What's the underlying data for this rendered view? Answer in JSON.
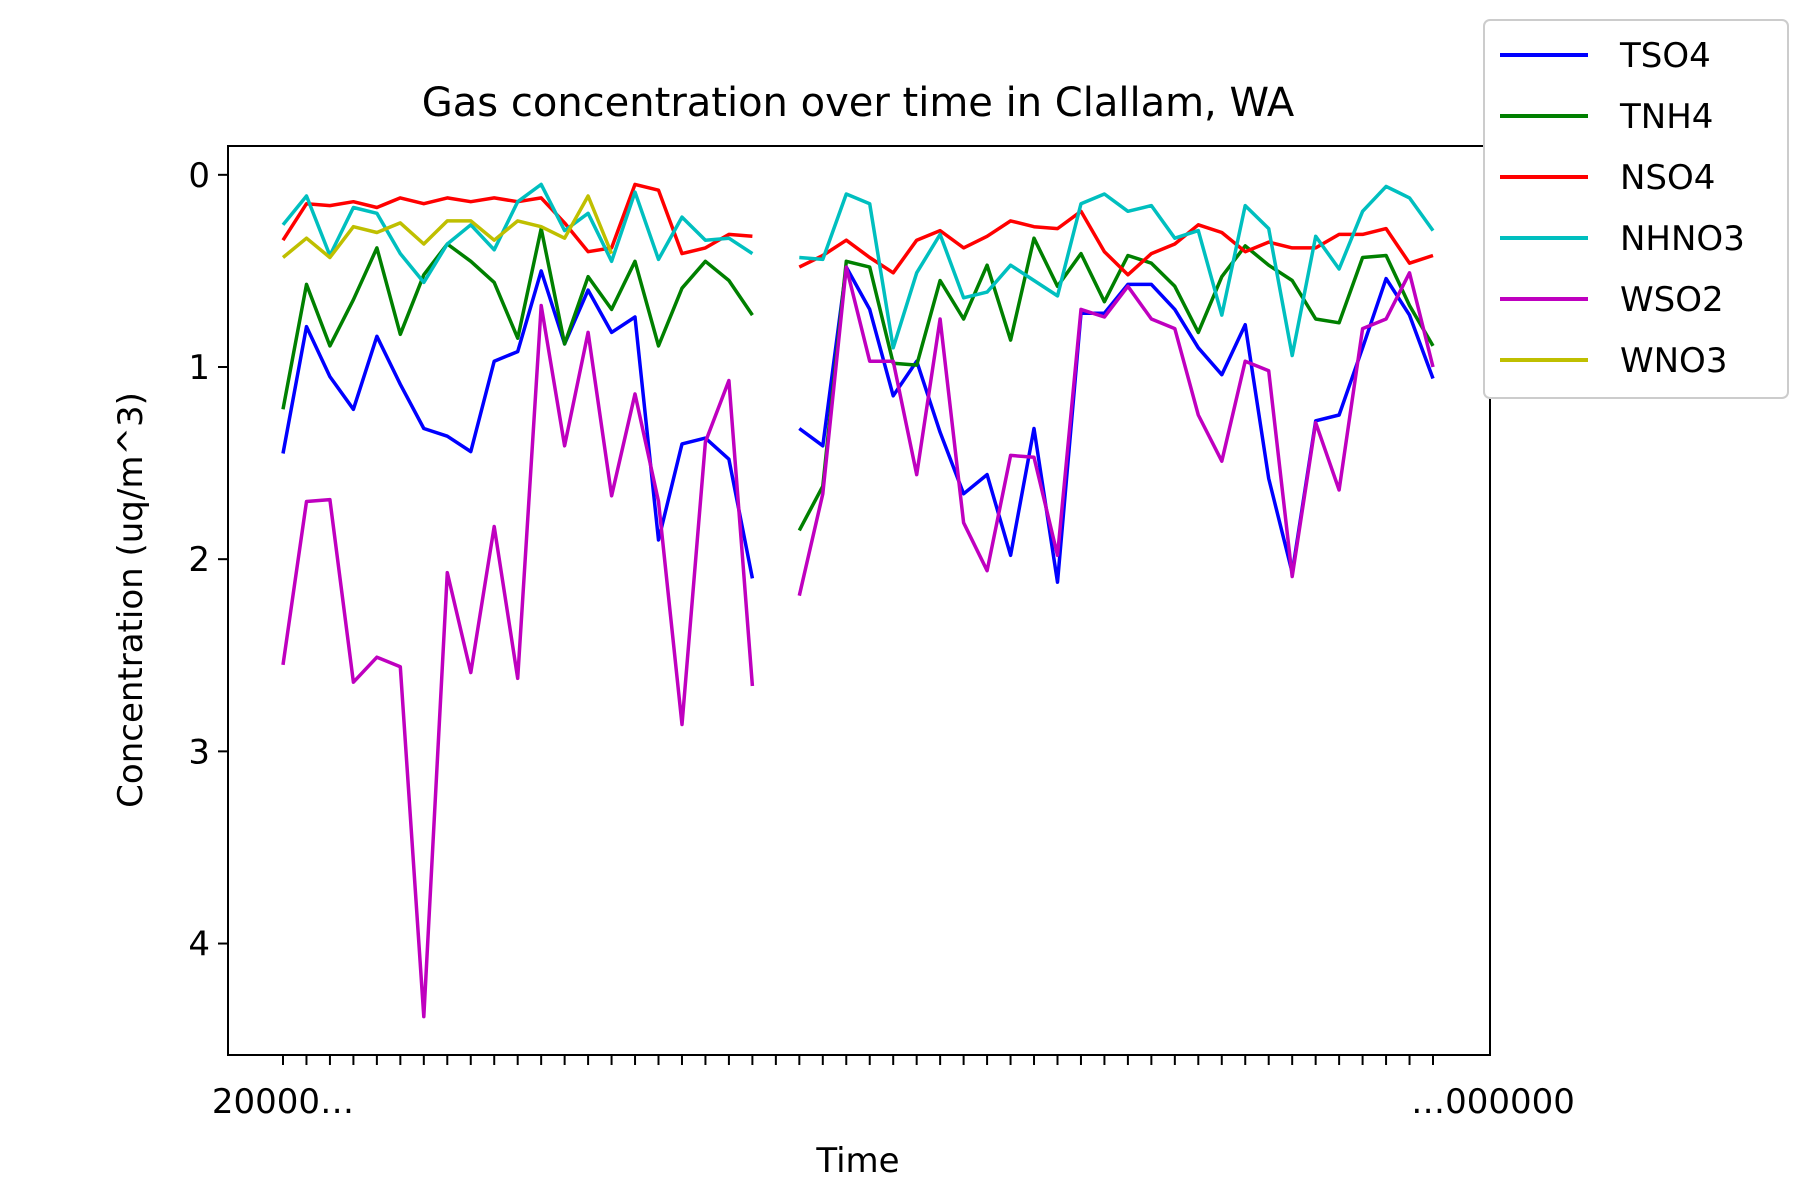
{
  "chart_data": {
    "type": "line",
    "title": "Gas concentration over time in Clallam, WA",
    "xlabel": "Time",
    "ylabel": "Concentration (uq/m^3)",
    "y_inverted": true,
    "ylim": [
      4.58,
      -0.15
    ],
    "yticks": [
      0,
      1,
      2,
      3,
      4
    ],
    "ytick_labels": [
      "0",
      "1",
      "2",
      "3",
      "4"
    ],
    "xtick_label_text": "20000…",
    "xtick_label_text_end": "…000000",
    "legend_position": "upper-right",
    "grid": false,
    "x_points": 50,
    "series": [
      {
        "name": "TSO4",
        "color": "#0000ff",
        "values": [
          1.45,
          0.79,
          1.05,
          1.22,
          0.84,
          1.09,
          1.32,
          1.36,
          1.44,
          0.97,
          0.92,
          0.5,
          0.88,
          0.6,
          0.82,
          0.74,
          1.9,
          1.4,
          1.37,
          1.48,
          2.1,
          null,
          1.32,
          1.41,
          0.48,
          0.7,
          1.15,
          0.97,
          1.34,
          1.66,
          1.56,
          1.98,
          1.32,
          2.12,
          0.72,
          0.72,
          0.57,
          0.57,
          0.7,
          0.9,
          1.04,
          0.78,
          1.58,
          2.07,
          1.28,
          1.25,
          0.9,
          0.54,
          0.73,
          1.06
        ]
      },
      {
        "name": "TNH4",
        "color": "#008000",
        "values": [
          1.22,
          0.57,
          0.89,
          0.65,
          0.38,
          0.83,
          0.52,
          0.36,
          0.45,
          0.56,
          0.85,
          0.28,
          0.88,
          0.53,
          0.7,
          0.45,
          0.89,
          0.59,
          0.45,
          0.55,
          0.73,
          null,
          1.85,
          1.62,
          0.45,
          0.48,
          0.98,
          0.99,
          0.55,
          0.75,
          0.47,
          0.86,
          0.33,
          0.58,
          0.41,
          0.66,
          0.42,
          0.46,
          0.58,
          0.82,
          0.53,
          0.37,
          0.47,
          0.55,
          0.75,
          0.77,
          0.43,
          0.42,
          0.68,
          0.89
        ]
      },
      {
        "name": "NSO4",
        "color": "#ff0000",
        "values": [
          0.34,
          0.15,
          0.16,
          0.14,
          0.17,
          0.12,
          0.15,
          0.12,
          0.14,
          0.12,
          0.14,
          0.12,
          0.25,
          0.4,
          0.38,
          0.05,
          0.08,
          0.41,
          0.38,
          0.31,
          0.32,
          null,
          0.48,
          0.42,
          0.34,
          0.43,
          0.51,
          0.34,
          0.29,
          0.38,
          0.32,
          0.24,
          0.27,
          0.28,
          0.19,
          0.4,
          0.52,
          0.41,
          0.36,
          0.26,
          0.3,
          0.4,
          0.35,
          0.38,
          0.38,
          0.31,
          0.31,
          0.28,
          0.46,
          0.42
        ]
      },
      {
        "name": "NHNO3",
        "color": "#00bfbf",
        "values": [
          0.26,
          0.11,
          0.42,
          0.17,
          0.2,
          0.41,
          0.56,
          0.36,
          0.26,
          0.39,
          0.14,
          0.05,
          0.29,
          0.2,
          0.45,
          0.09,
          0.44,
          0.22,
          0.34,
          0.33,
          0.41,
          null,
          0.43,
          0.44,
          0.1,
          0.15,
          0.9,
          0.51,
          0.31,
          0.64,
          0.61,
          0.47,
          0.55,
          0.63,
          0.15,
          0.1,
          0.19,
          0.16,
          0.33,
          0.29,
          0.73,
          0.16,
          0.28,
          0.94,
          0.32,
          0.49,
          0.19,
          0.06,
          0.12,
          0.29
        ]
      },
      {
        "name": "WSO2",
        "color": "#bf00bf",
        "values": [
          2.55,
          1.7,
          1.69,
          2.64,
          2.51,
          2.56,
          4.38,
          2.07,
          2.59,
          1.83,
          2.62,
          0.68,
          1.41,
          0.82,
          1.67,
          1.14,
          1.7,
          2.86,
          1.39,
          1.07,
          2.66,
          null,
          2.19,
          1.66,
          0.48,
          0.97,
          0.97,
          1.56,
          0.75,
          1.81,
          2.06,
          1.46,
          1.47,
          1.98,
          0.7,
          0.74,
          0.58,
          0.75,
          0.8,
          1.25,
          1.49,
          0.97,
          1.02,
          2.09,
          1.29,
          1.64,
          0.8,
          0.75,
          0.51,
          1.0
        ]
      },
      {
        "name": "WNO3",
        "color": "#bfbf00",
        "values": [
          0.43,
          0.33,
          0.43,
          0.27,
          0.3,
          0.25,
          0.36,
          0.24,
          0.24,
          0.34,
          0.24,
          0.27,
          0.33,
          0.11,
          0.41,
          null,
          null,
          null,
          null,
          null,
          null,
          null,
          null,
          null,
          null,
          null,
          null,
          null,
          null,
          null,
          null,
          null,
          null,
          null,
          null,
          null,
          null,
          null,
          null,
          null,
          null,
          null,
          null,
          null,
          null,
          null,
          null,
          null,
          null,
          null
        ]
      }
    ]
  }
}
